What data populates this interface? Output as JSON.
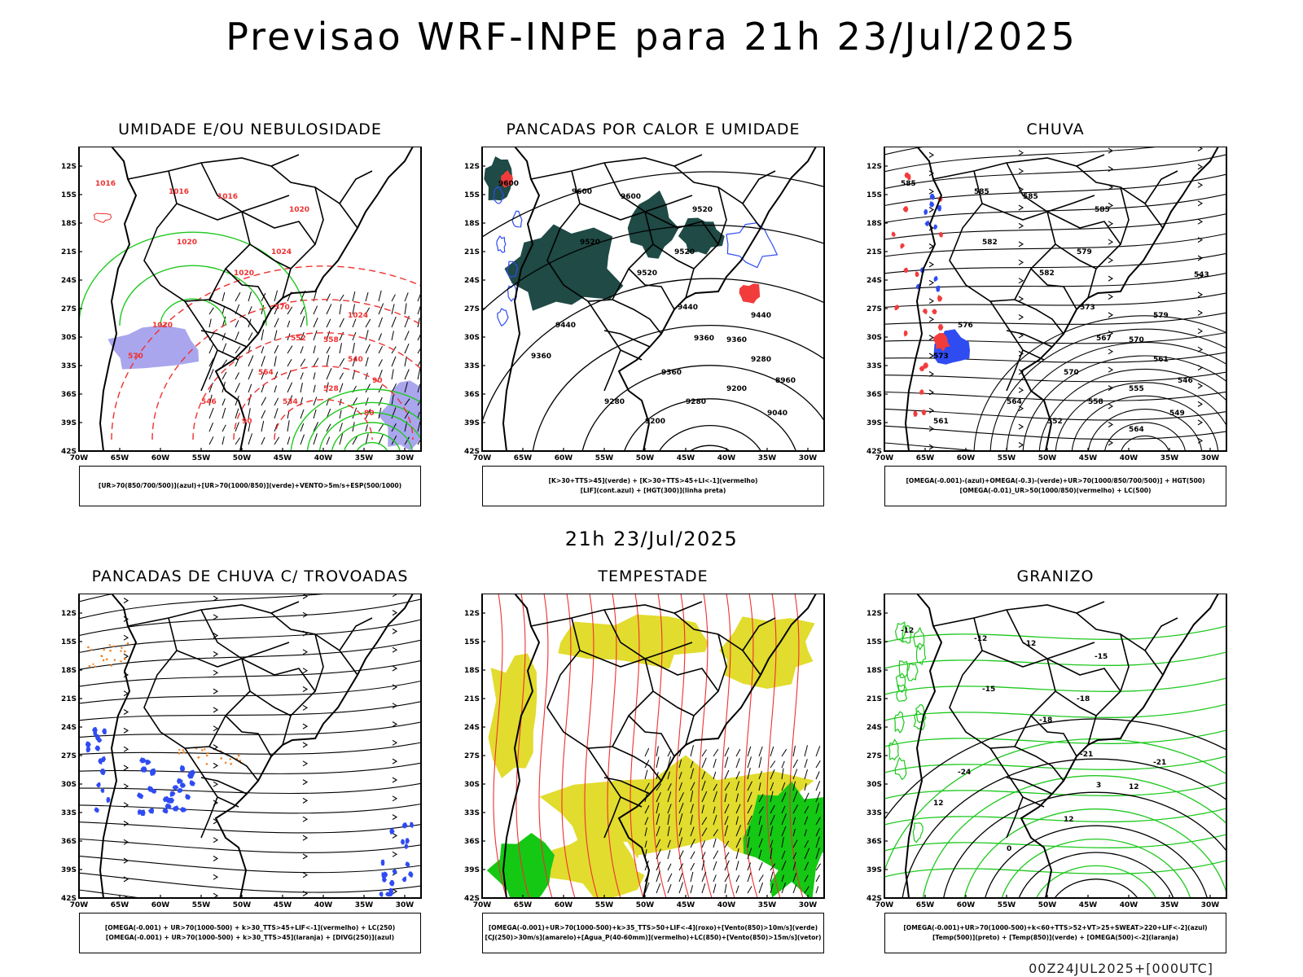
{
  "title": "Previsao WRF-INPE  para 21h 23/Jul/2025",
  "subtitle": "21h 23/Jul/2025",
  "footer": "00Z24JUL2025+[000UTC]",
  "axes": {
    "lat_ticks": [
      "12S",
      "15S",
      "18S",
      "21S",
      "24S",
      "27S",
      "30S",
      "33S",
      "36S",
      "39S",
      "42S"
    ],
    "lon_ticks": [
      "70W",
      "65W",
      "60W",
      "55W",
      "50W",
      "45W",
      "40W",
      "35W",
      "30W"
    ]
  },
  "colors": {
    "blue_fill": "#a9a6ee",
    "dark_teal": "#1f4a45",
    "red_fill": "#f23c3c",
    "yellow_fill": "#e1dc2e",
    "green_fill": "#14c814",
    "green_line": "#1ec81e",
    "red_line": "#f03030",
    "blue_line": "#2f4cf2"
  },
  "panels": [
    {
      "id": "umidade",
      "title": "UMIDADE E/OU NEBULOSIDADE",
      "legend": [
        "[UR>70(850/700/500)](azul)+[UR>70(1000/850)](verde)+VENTO>5m/s+ESP(500/1000)"
      ],
      "contour_labels": [
        "1016",
        "1016",
        "1016",
        "1020",
        "1020",
        "1020",
        "1024",
        "1024",
        "1020",
        "570",
        "570",
        "564",
        "558",
        "552",
        "546",
        "540",
        "534",
        "528",
        "90",
        "80",
        "90"
      ]
    },
    {
      "id": "pancadas",
      "title": "PANCADAS POR CALOR E UMIDADE",
      "legend": [
        "[K>30+TTS>45](verde) + [K>30+TTS>45+LI<-1](vermelho)",
        "[LIF](cont.azul) + [HGT(300)](linha preta)"
      ],
      "contour_labels": [
        "9600",
        "9600",
        "9600",
        "9520",
        "9520",
        "9520",
        "9520",
        "9440",
        "9440",
        "9440",
        "9360",
        "9360",
        "9360",
        "9360",
        "9280",
        "9280",
        "9280",
        "9200",
        "9200",
        "9040",
        "8960"
      ]
    },
    {
      "id": "chuva",
      "title": "CHUVA",
      "legend": [
        "[OMEGA(-0.001)-(azul)+OMEGA(-0.3)-(verde)+UR>70(1000/850/700/500)] + HGT(500)",
        "[OMEGA(-0.01)_UR>50(1000/850)(vermelho) + LC(500)"
      ],
      "contour_labels": [
        "585",
        "585",
        "585",
        "585",
        "582",
        "582",
        "579",
        "579",
        "576",
        "573",
        "573",
        "570",
        "570",
        "567",
        "564",
        "561",
        "558",
        "555",
        "552",
        "549",
        "546",
        "543",
        "561",
        "564"
      ]
    },
    {
      "id": "trovoadas",
      "title": "PANCADAS DE CHUVA C/ TROVOADAS",
      "legend": [
        "[OMEGA(-0.001) + UR>70(1000-500) + k>30_TTS>45+LIF<-1](vermelho) + LC(250)",
        "[OMEGA(-0.001) + UR>70(1000-500) + k>30_TTS>45](laranja) + [DIVG(250)](azul)"
      ],
      "contour_labels": []
    },
    {
      "id": "tempestade",
      "title": "TEMPESTADE",
      "legend": [
        "[OMEGA(-0.001)+UR>70(1000-500)+k>35_TTS>50+LIF<-4](roxo)+[Vento(850)>10m/s](verde)",
        "[CJ(250)>30m/s](amarelo)+[Agua_P(40-60mm)](vermelho)+LC(850)+[Vento(850)>15m/s](vetor)"
      ],
      "contour_labels": []
    },
    {
      "id": "granizo",
      "title": "GRANIZO",
      "legend": [
        "[OMEGA(-0.001)+UR>70(1000-500)+k<60+TTS>52+VT>25+SWEAT>220+LIF<-2](azul)",
        "[Temp(500)](preto) + [Temp(850)](verde) + [OMEGA(500)<-2](laranja)"
      ],
      "contour_labels": [
        "-12",
        "-12",
        "-12",
        "-15",
        "-15",
        "-18",
        "-18",
        "-21",
        "-24",
        "-21",
        "12",
        "12",
        "12",
        "3",
        "0"
      ]
    }
  ]
}
